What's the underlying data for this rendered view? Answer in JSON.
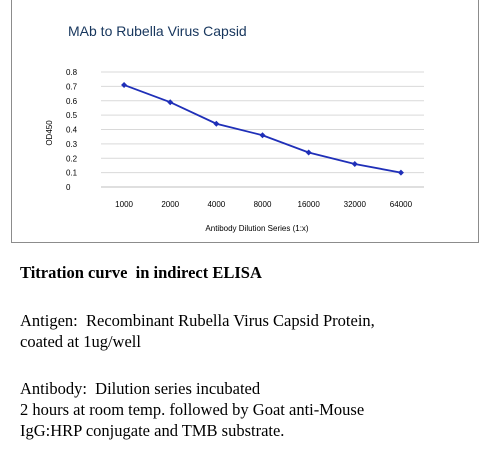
{
  "chart_data": {
    "type": "line",
    "title": "MAb to Rubella Virus Capsid",
    "xlabel": "Antibody Dilution Series (1:x)",
    "ylabel": "OD450",
    "categories": [
      "1000",
      "2000",
      "4000",
      "8000",
      "16000",
      "32000",
      "64000"
    ],
    "series": [
      {
        "values": [
          0.71,
          0.59,
          0.44,
          0.36,
          0.24,
          0.16,
          0.1
        ]
      }
    ],
    "yticks": [
      "0",
      "0.1",
      "0.2",
      "0.3",
      "0.4",
      "0.5",
      "0.6",
      "0.7",
      "0.8"
    ],
    "ylim": [
      0,
      0.8
    ],
    "grid": true,
    "legend": "none",
    "line_color": "#1f2fb8"
  },
  "caption": {
    "heading": "Titration curve  in indirect ELISA",
    "antigen": "Antigen:  Recombinant Rubella Virus Capsid Protein,\ncoated at 1ug/well",
    "antibody": "Antibody:  Dilution series incubated\n2 hours at room temp. followed by Goat anti-Mouse\nIgG:HRP conjugate and TMB substrate."
  }
}
